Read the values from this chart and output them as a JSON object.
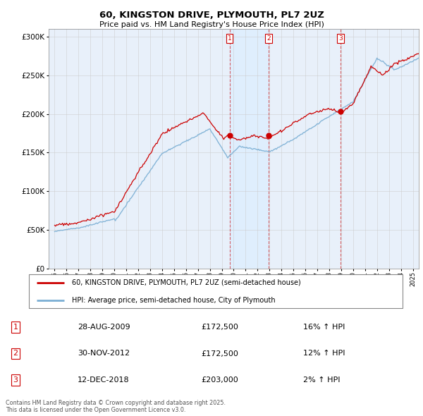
{
  "title": "60, KINGSTON DRIVE, PLYMOUTH, PL7 2UZ",
  "subtitle": "Price paid vs. HM Land Registry's House Price Index (HPI)",
  "legend_line1": "60, KINGSTON DRIVE, PLYMOUTH, PL7 2UZ (semi-detached house)",
  "legend_line2": "HPI: Average price, semi-detached house, City of Plymouth",
  "transactions": [
    {
      "num": 1,
      "date": "28-AUG-2009",
      "price": "£172,500",
      "hpi": "16% ↑ HPI",
      "year": 2009.66
    },
    {
      "num": 2,
      "date": "30-NOV-2012",
      "price": "£172,500",
      "hpi": "12% ↑ HPI",
      "year": 2012.92
    },
    {
      "num": 3,
      "date": "12-DEC-2018",
      "price": "£203,000",
      "hpi": "2% ↑ HPI",
      "year": 2018.95
    }
  ],
  "transaction_prices": [
    172500,
    172500,
    203000
  ],
  "copyright": "Contains HM Land Registry data © Crown copyright and database right 2025.\nThis data is licensed under the Open Government Licence v3.0.",
  "red_color": "#cc0000",
  "blue_color": "#7bafd4",
  "shade_color": "#ddeeff",
  "background_color": "#e8f0fa",
  "ylim": [
    0,
    310000
  ],
  "xlim_start": 1994.5,
  "xlim_end": 2025.5
}
